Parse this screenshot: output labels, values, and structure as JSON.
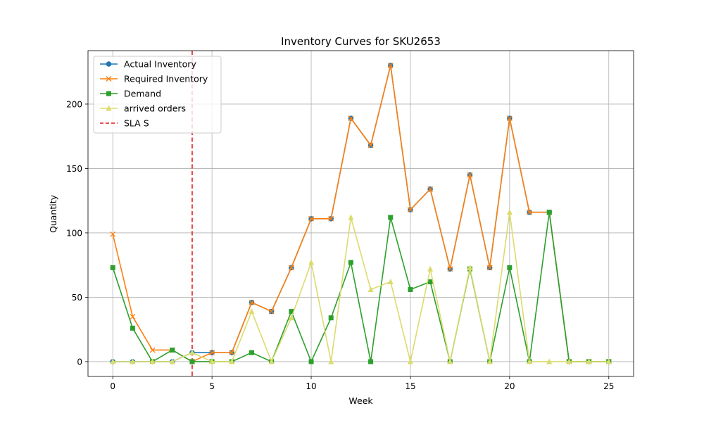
{
  "chart_data": {
    "type": "line",
    "title": "Inventory Curves for SKU2653",
    "xlabel": "Week",
    "ylabel": "Quantity",
    "xlim": [
      -1.25,
      26.25
    ],
    "ylim": [
      -11.5,
      241.5
    ],
    "x_ticks": [
      0,
      5,
      10,
      15,
      20,
      25
    ],
    "y_ticks": [
      0,
      50,
      100,
      150,
      200
    ],
    "grid": true,
    "legend_position": "top-left",
    "x": [
      0,
      1,
      2,
      3,
      4,
      5,
      6,
      7,
      8,
      9,
      10,
      11,
      12,
      13,
      14,
      15,
      16,
      17,
      18,
      19,
      20,
      21,
      22,
      23,
      24,
      25
    ],
    "series": [
      {
        "name": "Actual Inventory",
        "color": "#1f77b4",
        "marker": "circle",
        "x": [
          0,
          1,
          2,
          3,
          4,
          5,
          6,
          7,
          8,
          9,
          10,
          11,
          12,
          13,
          14,
          15,
          16,
          17,
          18,
          19,
          20,
          21,
          22,
          23,
          24,
          25
        ],
        "values": [
          0,
          0,
          0,
          0,
          7,
          7,
          7,
          46,
          39,
          73,
          111,
          111,
          189,
          168,
          230,
          118,
          134,
          72,
          145,
          73,
          189,
          116,
          116,
          0,
          0,
          0
        ]
      },
      {
        "name": "Required Inventory",
        "color": "#ff7f0e",
        "marker": "x",
        "x": [
          0,
          1,
          2,
          3,
          4,
          5,
          6,
          7,
          8,
          9,
          10,
          11,
          12,
          13,
          14,
          15,
          16,
          17,
          18,
          19,
          20,
          21,
          22,
          23,
          24,
          25
        ],
        "values": [
          99,
          35,
          9,
          9,
          0,
          7,
          7,
          46,
          39,
          73,
          111,
          111,
          189,
          168,
          230,
          118,
          134,
          72,
          145,
          73,
          189,
          116,
          116,
          0,
          0,
          0
        ]
      },
      {
        "name": "Demand",
        "color": "#2ca02c",
        "marker": "square",
        "x": [
          0,
          1,
          2,
          3,
          4,
          5,
          6,
          7,
          8,
          9,
          10,
          11,
          12,
          13,
          14,
          15,
          16,
          17,
          18,
          19,
          20,
          21,
          22,
          23,
          24,
          25
        ],
        "values": [
          73,
          26,
          0,
          9,
          0,
          0,
          0,
          7,
          0,
          39,
          0,
          34,
          77,
          0,
          112,
          56,
          62,
          0,
          72,
          0,
          73,
          0,
          116,
          0,
          0,
          0
        ]
      },
      {
        "name": "arrived orders",
        "color": "#dbdb6e",
        "marker": "triangle",
        "x": [
          0,
          1,
          2,
          3,
          4,
          5,
          6,
          7,
          8,
          9,
          10,
          11,
          12,
          13,
          14,
          15,
          16,
          17,
          18,
          19,
          20,
          21,
          22,
          23,
          24,
          25
        ],
        "values": [
          0,
          0,
          0,
          0,
          7,
          0,
          0,
          39,
          0,
          34,
          77,
          0,
          112,
          56,
          62,
          0,
          72,
          0,
          73,
          0,
          116,
          0,
          0,
          0,
          0,
          0
        ]
      }
    ],
    "vlines": [
      {
        "name": "SLA S",
        "x": 4,
        "color": "#e31a1c",
        "style": "dashed"
      }
    ]
  }
}
